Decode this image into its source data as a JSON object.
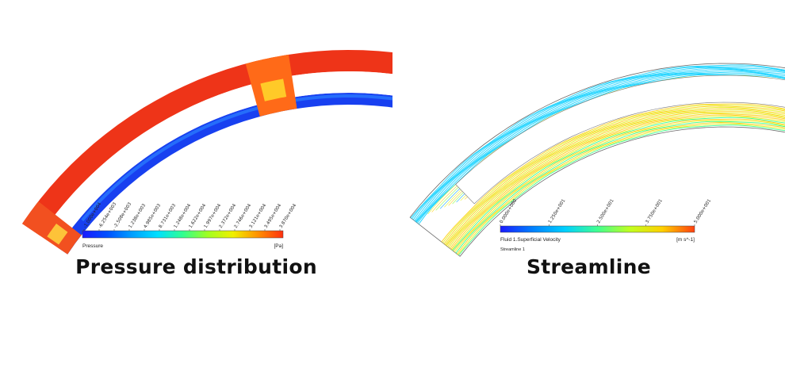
{
  "left_panel": {
    "caption": "Pressure distribution",
    "colorbar": {
      "variable": "Pressure",
      "unit": "[Pa]",
      "ticks": [
        "-1.000e+004",
        "-6.254e+003",
        "-2.508e+003",
        "1.238e+003",
        "4.985e+003",
        "8.731e+003",
        "1.248e+004",
        "1.622e+004",
        "1.997e+004",
        "2.372e+004",
        "2.746e+004",
        "3.121e+004",
        "3.495e+004",
        "3.870e+004"
      ],
      "colors": [
        "#1a1aff",
        "#0050ff",
        "#00a0ff",
        "#00e0ff",
        "#30ff90",
        "#a0ff20",
        "#f0f000",
        "#ff9000",
        "#ff3010"
      ]
    }
  },
  "right_panel": {
    "caption": "Streamline",
    "colorbar": {
      "variable": "Fluid 1.Superficial Velocity",
      "unit": "[m s^-1]",
      "sublabel": "Streamline 1",
      "ticks": [
        "0.000e+000",
        "1.250e+001",
        "2.500e+001",
        "3.750e+001",
        "5.000e+001"
      ],
      "colors": [
        "#1a1aff",
        "#0080ff",
        "#00d0ff",
        "#40ff90",
        "#c0ff20",
        "#ffd000",
        "#ff4010"
      ]
    }
  }
}
